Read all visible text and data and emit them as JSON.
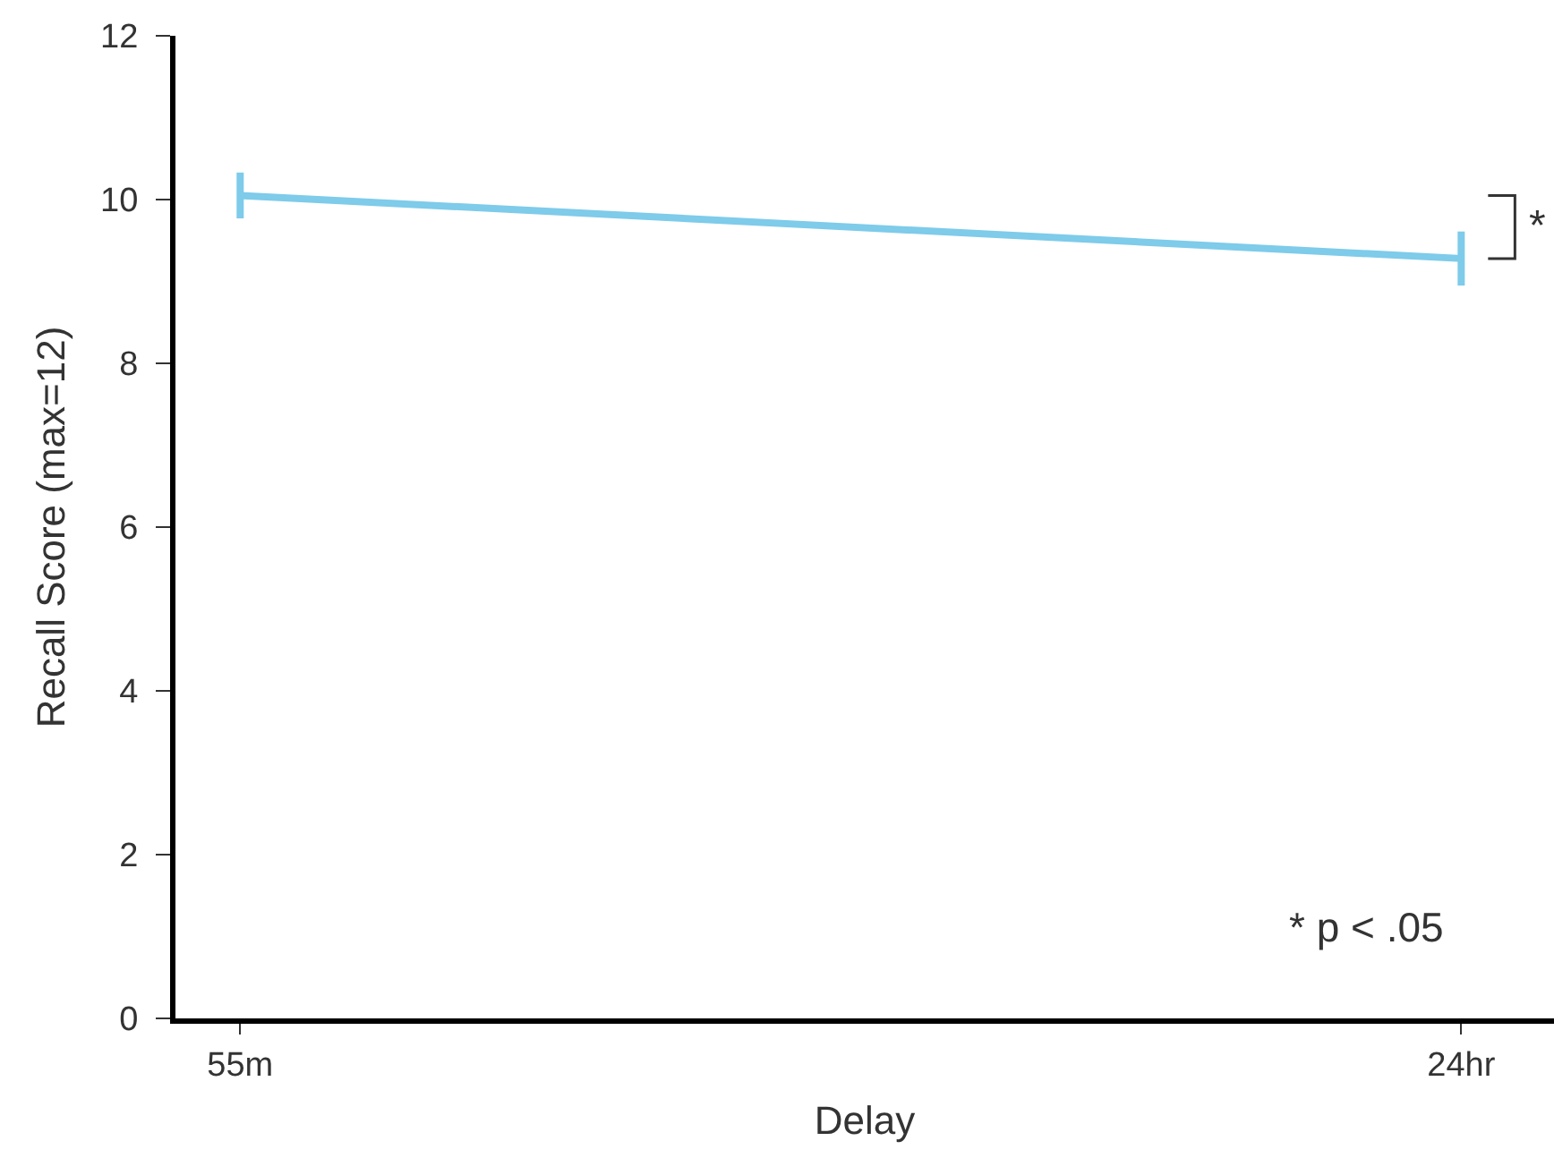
{
  "chart_data": {
    "type": "line",
    "xlabel": "Delay",
    "ylabel": "Recall Score (max=12)",
    "categories": [
      "55m",
      "24hr"
    ],
    "series": [
      {
        "color": "#7ecbea",
        "values": [
          10.05,
          9.28
        ],
        "errors": [
          0.28,
          0.33
        ]
      }
    ],
    "ylim": [
      0,
      12
    ],
    "yticks": [
      0,
      2,
      4,
      6,
      8,
      10,
      12
    ],
    "grid": false,
    "marker": "none",
    "line_style": "solid",
    "annotations": [
      "*",
      "* p < .05"
    ]
  }
}
